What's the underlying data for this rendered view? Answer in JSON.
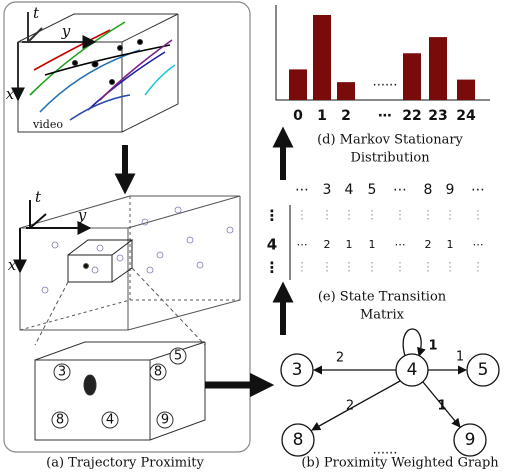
{
  "panel_a": {
    "caption": "(a) Trajectory Proximity",
    "top_box": {
      "t": "t",
      "y": "y",
      "x": "x",
      "video": "video"
    },
    "mid_box": {
      "t": "t",
      "y": "y",
      "x": "x"
    },
    "cube_nodes": [
      "3",
      "8",
      "5",
      "8",
      "4",
      "9"
    ]
  },
  "panel_b": {
    "caption": "(b) Proximity Weighted Graph",
    "nodes": [
      "3",
      "4",
      "5",
      "8",
      "9"
    ],
    "edge_labels": [
      "2",
      "1",
      "1",
      "2",
      "1"
    ],
    "ellipsis": "......"
  },
  "panel_e": {
    "caption": [
      "(e) State Transition",
      "Matrix"
    ],
    "columns": [
      "⋯",
      "3",
      "4",
      "5",
      "⋯",
      "8",
      "9",
      "⋯"
    ],
    "row_labels": [
      "⋮",
      "4",
      "⋮"
    ],
    "row_4": [
      "⋯",
      "2",
      "1",
      "1",
      "⋯",
      "2",
      "1",
      "⋯"
    ]
  },
  "panel_d": {
    "caption": [
      "(d) Markov Stationary",
      "Distribution"
    ],
    "categories": [
      "0",
      "1",
      "2",
      "⋯",
      "22",
      "23",
      "24"
    ],
    "values": [
      0.36,
      1.0,
      0.21,
      null,
      0.55,
      0.74,
      0.24
    ],
    "ellipsis": "......",
    "color": "#7a0b0b"
  }
}
